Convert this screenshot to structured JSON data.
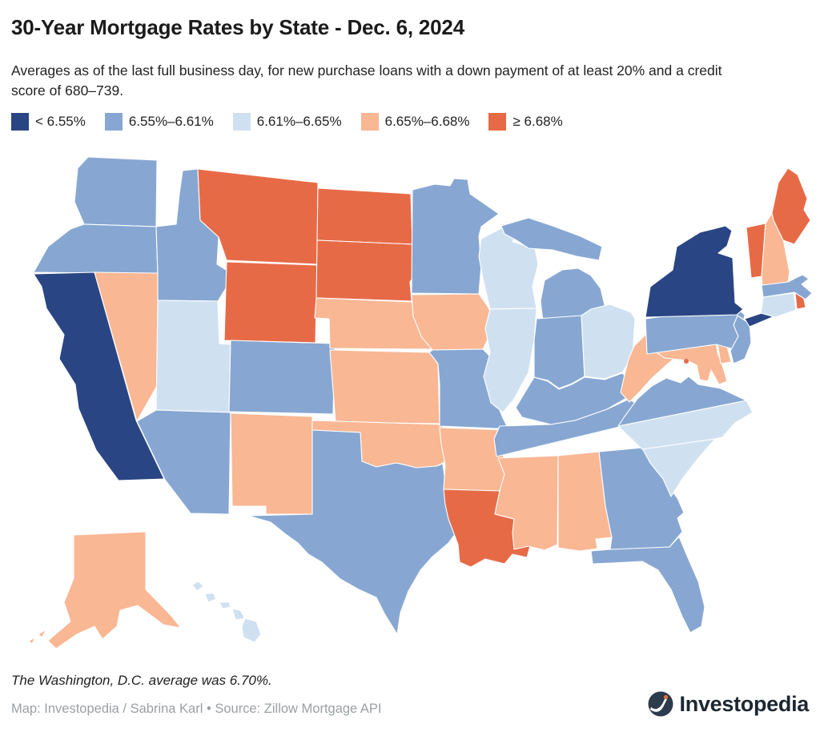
{
  "header": {
    "title": "30-Year Mortgage Rates by State - Dec. 6, 2024",
    "subtitle": "Averages as of the last full business day, for new purchase loans with a down payment of at least 20% and a credit score of 680–739."
  },
  "legend": {
    "items": [
      {
        "label": "< 6.55%",
        "color": "#2a4583"
      },
      {
        "label": "6.55%–6.61%",
        "color": "#87a7d2"
      },
      {
        "label": "6.61%–6.65%",
        "color": "#cfe1f1"
      },
      {
        "label": "6.65%–6.68%",
        "color": "#f9b794"
      },
      {
        "label": "≥ 6.68%",
        "color": "#e76a47"
      }
    ]
  },
  "chart_data": {
    "type": "choropleth",
    "title": "30-Year Mortgage Rates by State - Dec. 6, 2024",
    "unit": "30-year mortgage rate (%)",
    "legend_position": "top",
    "buckets": [
      "< 6.55%",
      "6.55%–6.61%",
      "6.61%–6.65%",
      "6.65%–6.68%",
      "≥ 6.68%"
    ],
    "states": [
      {
        "code": "WA",
        "name": "Washington",
        "bucket": "6.55%–6.61%"
      },
      {
        "code": "OR",
        "name": "Oregon",
        "bucket": "6.55%–6.61%"
      },
      {
        "code": "CA",
        "name": "California",
        "bucket": "< 6.55%"
      },
      {
        "code": "NV",
        "name": "Nevada",
        "bucket": "6.65%–6.68%"
      },
      {
        "code": "ID",
        "name": "Idaho",
        "bucket": "6.55%–6.61%"
      },
      {
        "code": "MT",
        "name": "Montana",
        "bucket": "≥ 6.68%"
      },
      {
        "code": "WY",
        "name": "Wyoming",
        "bucket": "≥ 6.68%"
      },
      {
        "code": "UT",
        "name": "Utah",
        "bucket": "6.61%–6.65%"
      },
      {
        "code": "CO",
        "name": "Colorado",
        "bucket": "6.55%–6.61%"
      },
      {
        "code": "AZ",
        "name": "Arizona",
        "bucket": "6.55%–6.61%"
      },
      {
        "code": "NM",
        "name": "New Mexico",
        "bucket": "6.65%–6.68%"
      },
      {
        "code": "ND",
        "name": "North Dakota",
        "bucket": "≥ 6.68%"
      },
      {
        "code": "SD",
        "name": "South Dakota",
        "bucket": "≥ 6.68%"
      },
      {
        "code": "NE",
        "name": "Nebraska",
        "bucket": "6.65%–6.68%"
      },
      {
        "code": "KS",
        "name": "Kansas",
        "bucket": "6.65%–6.68%"
      },
      {
        "code": "OK",
        "name": "Oklahoma",
        "bucket": "6.65%–6.68%"
      },
      {
        "code": "TX",
        "name": "Texas",
        "bucket": "6.55%–6.61%"
      },
      {
        "code": "MN",
        "name": "Minnesota",
        "bucket": "6.55%–6.61%"
      },
      {
        "code": "IA",
        "name": "Iowa",
        "bucket": "6.65%–6.68%"
      },
      {
        "code": "MO",
        "name": "Missouri",
        "bucket": "6.55%–6.61%"
      },
      {
        "code": "AR",
        "name": "Arkansas",
        "bucket": "6.65%–6.68%"
      },
      {
        "code": "LA",
        "name": "Louisiana",
        "bucket": "≥ 6.68%"
      },
      {
        "code": "WI",
        "name": "Wisconsin",
        "bucket": "6.61%–6.65%"
      },
      {
        "code": "IL",
        "name": "Illinois",
        "bucket": "6.61%–6.65%"
      },
      {
        "code": "MI",
        "name": "Michigan",
        "bucket": "6.55%–6.61%"
      },
      {
        "code": "IN",
        "name": "Indiana",
        "bucket": "6.55%–6.61%"
      },
      {
        "code": "OH",
        "name": "Ohio",
        "bucket": "6.61%–6.65%"
      },
      {
        "code": "KY",
        "name": "Kentucky",
        "bucket": "6.55%–6.61%"
      },
      {
        "code": "TN",
        "name": "Tennessee",
        "bucket": "6.55%–6.61%"
      },
      {
        "code": "MS",
        "name": "Mississippi",
        "bucket": "6.65%–6.68%"
      },
      {
        "code": "AL",
        "name": "Alabama",
        "bucket": "6.65%–6.68%"
      },
      {
        "code": "GA",
        "name": "Georgia",
        "bucket": "6.55%–6.61%"
      },
      {
        "code": "FL",
        "name": "Florida",
        "bucket": "6.55%–6.61%"
      },
      {
        "code": "SC",
        "name": "South Carolina",
        "bucket": "6.61%–6.65%"
      },
      {
        "code": "NC",
        "name": "North Carolina",
        "bucket": "6.61%–6.65%"
      },
      {
        "code": "VA",
        "name": "Virginia",
        "bucket": "6.55%–6.61%"
      },
      {
        "code": "WV",
        "name": "West Virginia",
        "bucket": "6.65%–6.68%"
      },
      {
        "code": "MD",
        "name": "Maryland",
        "bucket": "6.65%–6.68%"
      },
      {
        "code": "DE",
        "name": "Delaware",
        "bucket": "6.65%–6.68%"
      },
      {
        "code": "PA",
        "name": "Pennsylvania",
        "bucket": "6.55%–6.61%"
      },
      {
        "code": "NJ",
        "name": "New Jersey",
        "bucket": "6.55%–6.61%"
      },
      {
        "code": "NY",
        "name": "New York",
        "bucket": "< 6.55%"
      },
      {
        "code": "CT",
        "name": "Connecticut",
        "bucket": "6.61%–6.65%"
      },
      {
        "code": "RI",
        "name": "Rhode Island",
        "bucket": "≥ 6.68%"
      },
      {
        "code": "MA",
        "name": "Massachusetts",
        "bucket": "6.55%–6.61%"
      },
      {
        "code": "VT",
        "name": "Vermont",
        "bucket": "≥ 6.68%"
      },
      {
        "code": "NH",
        "name": "New Hampshire",
        "bucket": "6.65%–6.68%"
      },
      {
        "code": "ME",
        "name": "Maine",
        "bucket": "≥ 6.68%"
      },
      {
        "code": "AK",
        "name": "Alaska",
        "bucket": "6.65%–6.68%"
      },
      {
        "code": "HI",
        "name": "Hawaii",
        "bucket": "6.61%–6.65%"
      }
    ],
    "dc": {
      "name": "Washington, D.C.",
      "value": "6.70%",
      "bucket": "≥ 6.68%"
    }
  },
  "footer": {
    "note": "The Washington, D.C. average was 6.70%.",
    "credit": "Map: Investopedia / Sabrina Karl • Source: Zillow Mortgage API",
    "logo_text": "Investopedia"
  }
}
